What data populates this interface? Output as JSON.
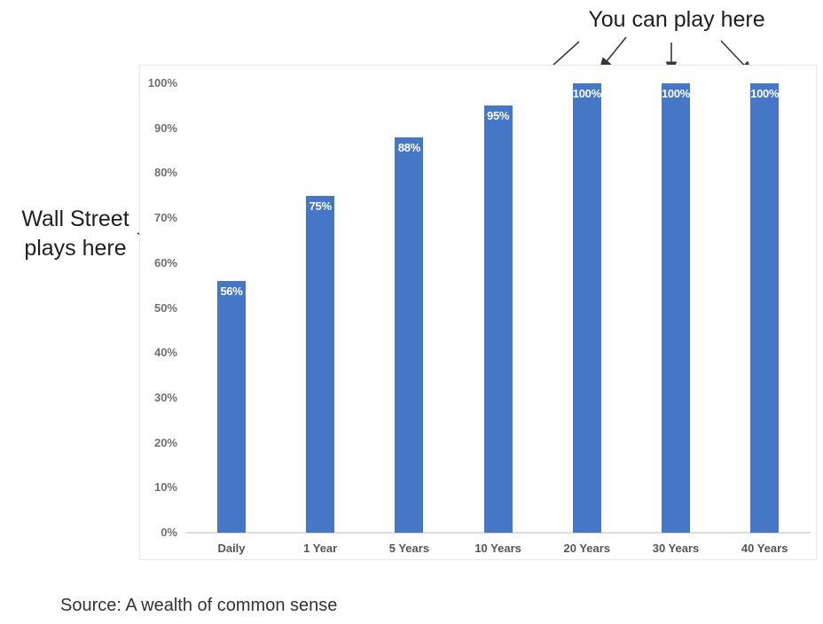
{
  "annotations": {
    "top": {
      "text": "You can play here"
    },
    "left": {
      "text": "Wall Street\nplays here"
    }
  },
  "source": "Source: A wealth of common sense",
  "chart_data": {
    "type": "bar",
    "categories": [
      "Daily",
      "1 Year",
      "5 Years",
      "10 Years",
      "20 Years",
      "30 Years",
      "40 Years"
    ],
    "values": [
      56,
      75,
      88,
      95,
      100,
      100,
      100
    ],
    "bar_labels": [
      "56%",
      "75%",
      "88%",
      "95%",
      "100%",
      "100%",
      "100%"
    ],
    "y_ticks": [
      {
        "value": 0,
        "label": "0%"
      },
      {
        "value": 10,
        "label": "10%"
      },
      {
        "value": 20,
        "label": "20%"
      },
      {
        "value": 30,
        "label": "30%"
      },
      {
        "value": 40,
        "label": "40%"
      },
      {
        "value": 50,
        "label": "50%"
      },
      {
        "value": 60,
        "label": "60%"
      },
      {
        "value": 70,
        "label": "70%"
      },
      {
        "value": 80,
        "label": "80%"
      },
      {
        "value": 90,
        "label": "90%"
      },
      {
        "value": 100,
        "label": "100%"
      }
    ],
    "title": "",
    "xlabel": "",
    "ylabel": "",
    "ylim": [
      0,
      100
    ],
    "grid": false,
    "legend_position": "none",
    "bar_color": "#4677C6",
    "bar_label_color": "#ffffff"
  }
}
